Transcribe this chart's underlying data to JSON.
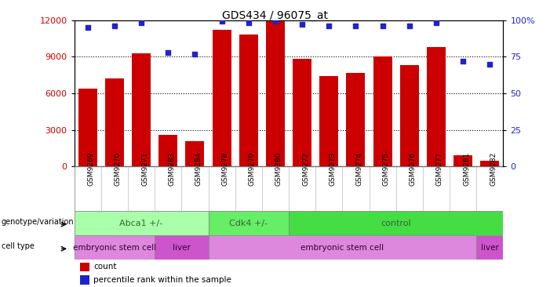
{
  "title": "GDS434 / 96075_at",
  "samples": [
    "GSM9269",
    "GSM9270",
    "GSM9271",
    "GSM9283",
    "GSM9284",
    "GSM9278",
    "GSM9279",
    "GSM9280",
    "GSM9272",
    "GSM9273",
    "GSM9274",
    "GSM9275",
    "GSM9276",
    "GSM9277",
    "GSM9281",
    "GSM9282"
  ],
  "counts": [
    6400,
    7200,
    9300,
    2600,
    2100,
    11200,
    10800,
    12000,
    8800,
    7400,
    7700,
    9050,
    8300,
    9800,
    900,
    500
  ],
  "percentiles": [
    95,
    96,
    98,
    78,
    77,
    99,
    98,
    99,
    97,
    96,
    96,
    96,
    96,
    98,
    72,
    70
  ],
  "ylim_left": [
    0,
    12000
  ],
  "ylim_right": [
    0,
    100
  ],
  "yticks_left": [
    0,
    3000,
    6000,
    9000,
    12000
  ],
  "yticks_right": [
    0,
    25,
    50,
    75,
    100
  ],
  "bar_color": "#cc0000",
  "dot_color": "#2222cc",
  "genotype_groups": [
    {
      "label": "Abca1 +/-",
      "start": 0,
      "end": 5,
      "color": "#aaffaa"
    },
    {
      "label": "Cdk4 +/-",
      "start": 5,
      "end": 8,
      "color": "#66ee66"
    },
    {
      "label": "control",
      "start": 8,
      "end": 16,
      "color": "#44dd44"
    }
  ],
  "celltype_groups": [
    {
      "label": "embryonic stem cell",
      "start": 0,
      "end": 3,
      "color": "#dd88dd"
    },
    {
      "label": "liver",
      "start": 3,
      "end": 5,
      "color": "#cc55cc"
    },
    {
      "label": "embryonic stem cell",
      "start": 5,
      "end": 15,
      "color": "#dd88dd"
    },
    {
      "label": "liver",
      "start": 15,
      "end": 16,
      "color": "#cc55cc"
    }
  ],
  "geno_text_color": "#336633",
  "cell_text_color": "#330033",
  "legend_count_color": "#cc0000",
  "legend_dot_color": "#2222cc",
  "background_color": "#ffffff",
  "plot_bg_color": "#ffffff",
  "grid_color": "#000000",
  "ylabel_left_color": "#cc0000",
  "ylabel_right_color": "#2222cc",
  "xtick_bg_color": "#c8c8c8"
}
